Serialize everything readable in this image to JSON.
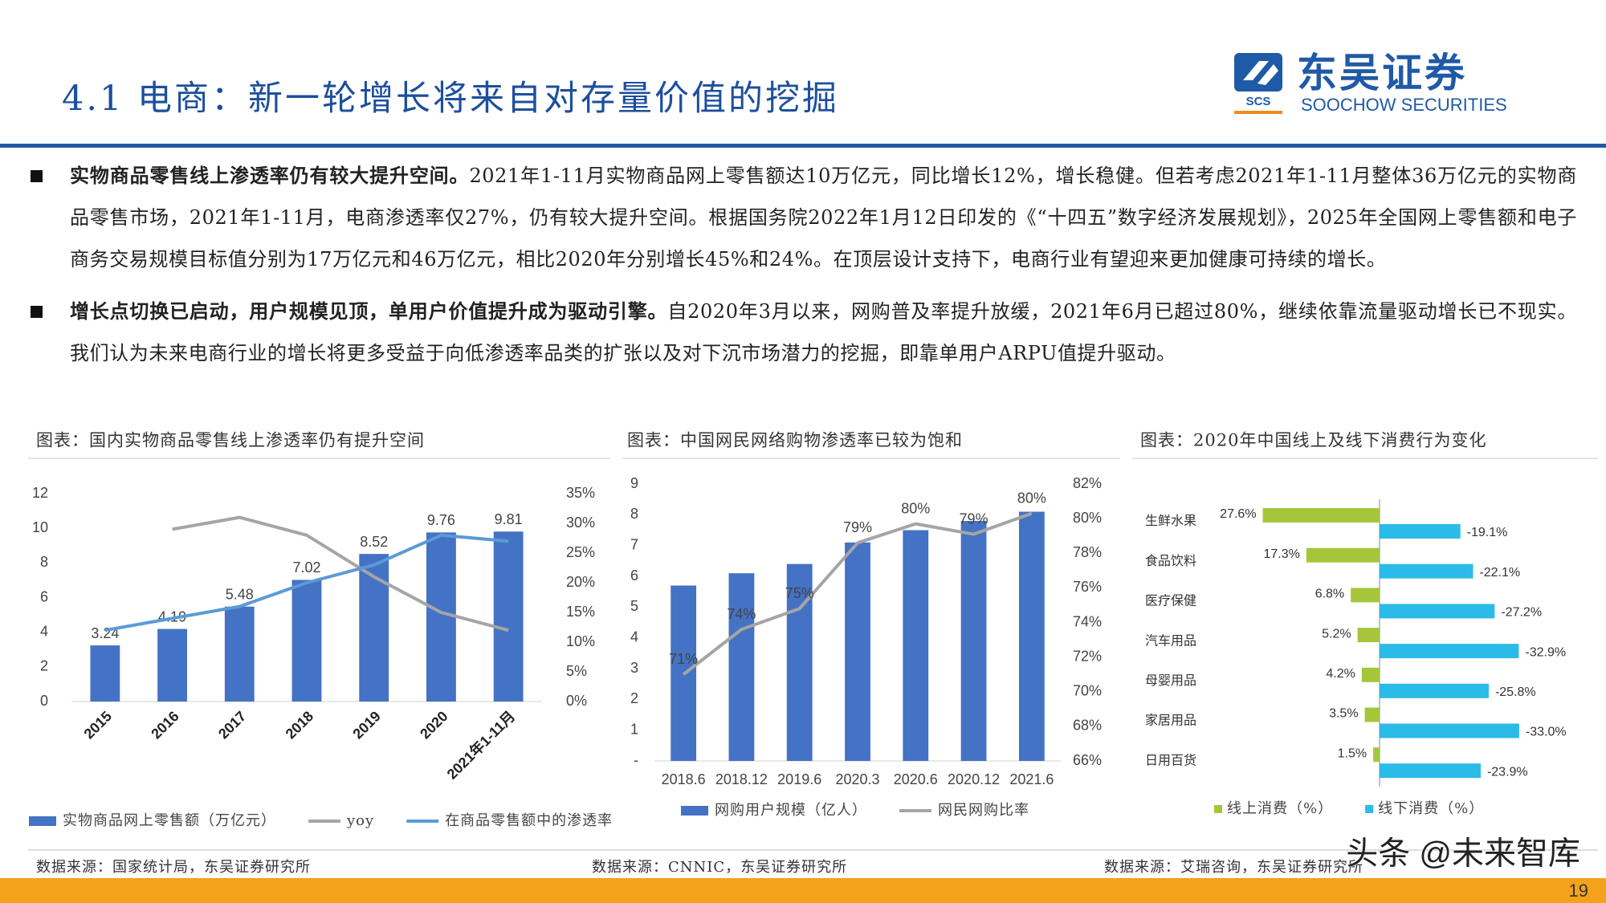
{
  "header": {
    "title": "4.1 电商：新一轮增长将来自对存量价值的挖掘",
    "logo_name": "东吴证券",
    "logo_en": "SOOCHOW SECURITIES",
    "logo_abbr": "SCS"
  },
  "bullets": [
    {
      "lead": "实物商品零售线上渗透率仍有较大提升空间。",
      "text": "2021年1-11月实物商品网上零售额达10万亿元，同比增长12%，增长稳健。但若考虑2021年1-11月整体36万亿元的实物商品零售市场，2021年1-11月，电商渗透率仅27%，仍有较大提升空间。根据国务院2022年1月12日印发的《“十四五”数字经济发展规划》，2025年全国网上零售额和电子商务交易规模目标值分别为17万亿元和46万亿元，相比2020年分别增长45%和24%。在顶层设计支持下，电商行业有望迎来更加健康可持续的增长。"
    },
    {
      "lead": "增长点切换已启动，用户规模见顶，单用户价值提升成为驱动引擎。",
      "text": "自2020年3月以来，网购普及率提升放缓，2021年6月已超过80%，继续依靠流量驱动增长已不现实。我们认为未来电商行业的增长将更多受益于向低渗透率品类的扩张以及对下沉市场潜力的挖掘，即靠单用户ARPU值提升驱动。"
    }
  ],
  "chart_data": [
    {
      "type": "bar_line",
      "title": "图表：国内实物商品零售线上渗透率仍有提升空间",
      "categories": [
        "2015",
        "2016",
        "2017",
        "2018",
        "2019",
        "2020",
        "2021年1-11月"
      ],
      "xtick_rotation": -45,
      "series": [
        {
          "name": "实物商品网上零售额（万亿元）",
          "type": "bar",
          "color": "#4472c4",
          "data_labels": true,
          "values": [
            3.24,
            4.19,
            5.48,
            7.02,
            8.52,
            9.76,
            9.81
          ]
        },
        {
          "name": "yoy",
          "type": "line",
          "axis": "y2",
          "color": "#a5a5a5",
          "values": [
            null,
            29,
            31,
            28,
            21,
            15,
            12
          ]
        },
        {
          "name": "在商品零售额中的渗透率",
          "type": "line",
          "axis": "y2",
          "color": "#5b9bd5",
          "values": [
            12,
            14,
            16,
            20,
            23,
            28,
            27
          ]
        }
      ],
      "ylim": [
        0,
        12
      ],
      "yticks": [
        0,
        2,
        4,
        6,
        8,
        10,
        12
      ],
      "y2lim": [
        0,
        35
      ],
      "y2ticks": [
        {
          "value": 0,
          "label": "0%"
        },
        {
          "value": 5,
          "label": "5%"
        },
        {
          "value": 10,
          "label": "10%"
        },
        {
          "value": 15,
          "label": "15%"
        },
        {
          "value": 20,
          "label": "20%"
        },
        {
          "value": 25,
          "label": "25%"
        },
        {
          "value": 30,
          "label": "30%"
        },
        {
          "value": 35,
          "label": "35%"
        }
      ],
      "source": "数据来源：国家统计局，东吴证券研究所"
    },
    {
      "type": "bar_line",
      "title": "图表：中国网民网络购物渗透率已较为饱和",
      "categories": [
        "2018.6",
        "2018.12",
        "2019.6",
        "2020.3",
        "2020.6",
        "2020.12",
        "2021.6"
      ],
      "series": [
        {
          "name": "网购用户规模（亿人）",
          "type": "bar",
          "color": "#4472c4",
          "values": [
            5.7,
            6.1,
            6.4,
            7.1,
            7.5,
            7.8,
            8.1
          ]
        },
        {
          "name": "网民网购比率",
          "type": "line",
          "axis": "y2",
          "color": "#a5a5a5",
          "values": [
            71.0,
            73.6,
            74.8,
            78.6,
            79.7,
            79.1,
            80.3
          ],
          "value_labels": [
            "71%",
            "74%",
            "75%",
            "79%",
            "80%",
            "79%",
            "80%"
          ]
        }
      ],
      "ylim": [
        0,
        9
      ],
      "yticks": [
        {
          "value": 0,
          "label": "-"
        },
        1,
        2,
        3,
        4,
        5,
        6,
        7,
        8,
        9
      ],
      "y2lim": [
        66,
        82
      ],
      "y2ticks": [
        {
          "value": 66,
          "label": "66%"
        },
        {
          "value": 68,
          "label": "68%"
        },
        {
          "value": 70,
          "label": "70%"
        },
        {
          "value": 72,
          "label": "72%"
        },
        {
          "value": 74,
          "label": "74%"
        },
        {
          "value": 76,
          "label": "76%"
        },
        {
          "value": 78,
          "label": "78%"
        },
        {
          "value": 80,
          "label": "80%"
        },
        {
          "value": 82,
          "label": "82%"
        }
      ],
      "source": "数据来源：CNNIC，东吴证券研究所"
    },
    {
      "type": "diverging_bar",
      "title": "图表：2020年中国线上及线下消费行为变化",
      "categories": [
        "生鲜水果",
        "食品饮料",
        "医疗保健",
        "汽车用品",
        "母婴用品",
        "家居用品",
        "日用百货"
      ],
      "series": [
        {
          "name": "线上消费（%）",
          "color": "#a5c63b",
          "values": [
            27.6,
            17.3,
            6.8,
            5.2,
            4.2,
            3.5,
            1.5
          ],
          "value_labels": [
            "27.6%",
            "17.3%",
            "6.8%",
            "5.2%",
            "4.2%",
            "3.5%",
            "1.5%"
          ]
        },
        {
          "name": "线下消费（%）",
          "color": "#2bbbe8",
          "values": [
            -19.1,
            -22.1,
            -27.2,
            -32.9,
            -25.8,
            -33.0,
            -23.9
          ],
          "value_labels": [
            "-19.1%",
            "-22.1%",
            "-27.2%",
            "-32.9%",
            "-25.8%",
            "-33.0%",
            "-23.9%"
          ]
        }
      ],
      "source": "数据来源：艾瑞咨询，东吴证券研究所"
    }
  ],
  "watermark": "头条 @未来智库",
  "page_number": "19"
}
